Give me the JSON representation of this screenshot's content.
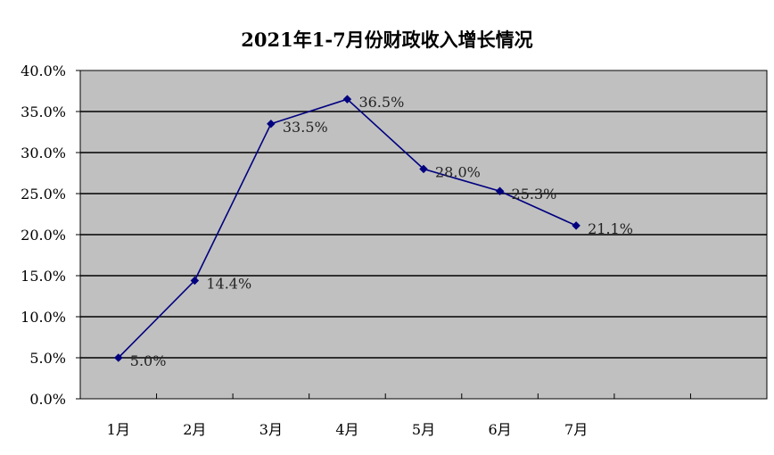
{
  "chart_data": {
    "type": "line",
    "title": "2021年1-7月份财政收入增长情况",
    "categories": [
      "1月",
      "2月",
      "3月",
      "4月",
      "5月",
      "6月",
      "7月"
    ],
    "series": [
      {
        "values": [
          5.0,
          14.4,
          33.5,
          36.5,
          28.0,
          25.3,
          21.1
        ],
        "labels": [
          "5.0%",
          "14.4%",
          "33.5%",
          "36.5%",
          "28.0%",
          "25.3%",
          "21.1%"
        ]
      }
    ],
    "y_ticks": [
      "0.0%",
      "5.0%",
      "10.0%",
      "15.0%",
      "20.0%",
      "25.0%",
      "30.0%",
      "35.0%",
      "40.0%"
    ],
    "ylim": [
      0,
      40
    ],
    "x_slots": 9,
    "grid": true,
    "colors": {
      "plot_bg": "#c0c0c0",
      "line": "#000080",
      "marker": "#000080",
      "grid": "#000000"
    }
  }
}
